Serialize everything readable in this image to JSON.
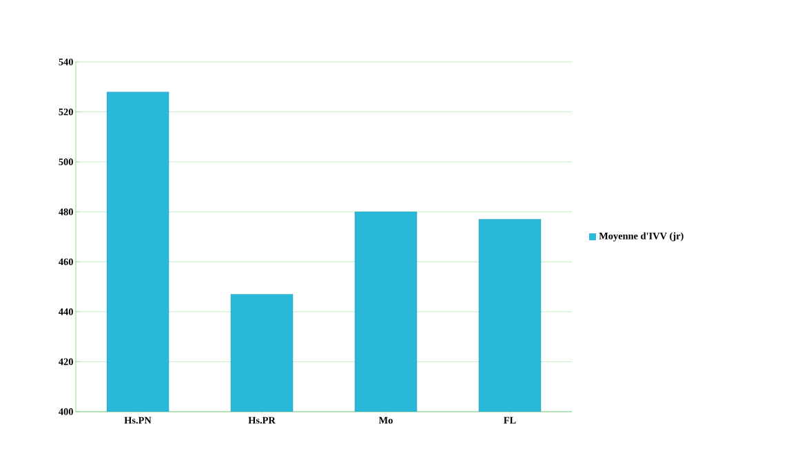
{
  "chart_data": {
    "type": "bar",
    "categories": [
      "Hs.PN",
      "Hs.PR",
      "Mo",
      "FL"
    ],
    "series": [
      {
        "name": "Moyenne d'IVV (jr)",
        "color": "#29b8d8",
        "values": [
          528,
          447,
          480,
          477
        ]
      }
    ],
    "ylim": [
      400,
      540
    ],
    "yticks": [
      400,
      420,
      440,
      460,
      480,
      500,
      520,
      540
    ],
    "grid": "y",
    "legend": "right"
  }
}
